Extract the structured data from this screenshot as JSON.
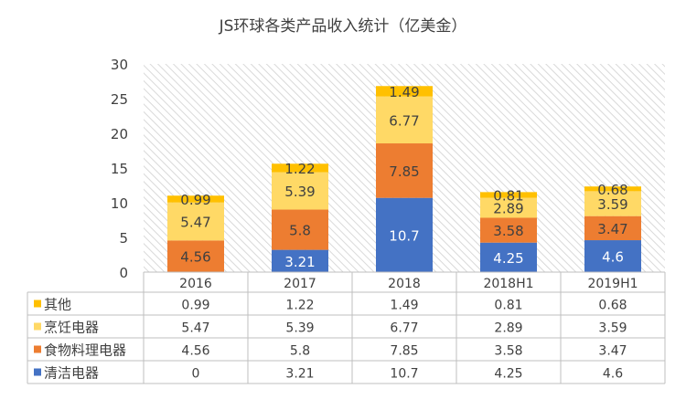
{
  "chart_data": {
    "type": "bar",
    "stacked": true,
    "title": "JS环球各类产品收入统计（亿美金）",
    "categories": [
      "2016",
      "2017",
      "2018",
      "2018H1",
      "2019H1"
    ],
    "ylim": [
      0,
      30
    ],
    "yticks": [
      0,
      5,
      10,
      15,
      20,
      25,
      30
    ],
    "grid": false,
    "legend": "data-table",
    "series": [
      {
        "name": "清洁电器",
        "color": "#4472C4",
        "values": [
          0,
          3.21,
          10.7,
          4.25,
          4.6
        ]
      },
      {
        "name": "食物料理电器",
        "color": "#ED7D31",
        "values": [
          4.56,
          5.8,
          7.85,
          3.58,
          3.47
        ]
      },
      {
        "name": "烹饪电器",
        "color": "#FFD966",
        "values": [
          5.47,
          5.39,
          6.77,
          2.89,
          3.59
        ]
      },
      {
        "name": "其他",
        "color": "#FFC000",
        "values": [
          0.99,
          1.22,
          1.49,
          0.81,
          0.68
        ]
      }
    ],
    "table_row_order": [
      "其他",
      "烹饪电器",
      "食物料理电器",
      "清洁电器"
    ],
    "data_table": {
      "其他": [
        "0.99",
        "1.22",
        "1.49",
        "0.81",
        "0.68"
      ],
      "烹饪电器": [
        "5.47",
        "5.39",
        "6.77",
        "2.89",
        "3.59"
      ],
      "食物料理电器": [
        "4.56",
        "5.8",
        "7.85",
        "3.58",
        "3.47"
      ],
      "清洁电器": [
        "0",
        "3.21",
        "10.7",
        "4.25",
        "4.6"
      ]
    },
    "bar_labels": {
      "清洁电器": [
        "",
        "3.21",
        "10.7",
        "4.25",
        "4.6"
      ],
      "食物料理电器": [
        "4.56",
        "5.8",
        "7.85",
        "3.58",
        "3.47"
      ],
      "烹饪电器": [
        "5.47",
        "5.39",
        "6.77",
        "2.89",
        "3.59"
      ],
      "其他": [
        "0.99",
        "1.22",
        "1.49",
        "0.81",
        "0.68"
      ]
    }
  }
}
